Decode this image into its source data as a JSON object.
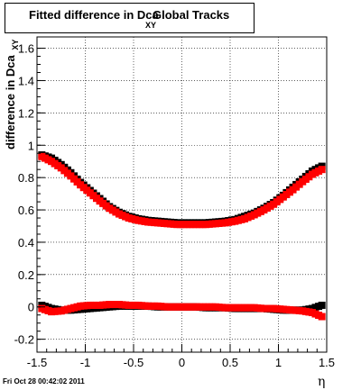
{
  "title": {
    "main": "Fitted difference in Dca",
    "subscript": "XY",
    "tail": "Global Tracks"
  },
  "timestamp": "Fri Oct 28 00:42:02 2011",
  "chart_data": {
    "type": "scatter",
    "xlabel": "η",
    "ylabel": "difference in Dca",
    "ylabel_subscript": "XY",
    "xlim": [
      -1.5,
      1.5
    ],
    "ylim": [
      -0.28,
      1.67
    ],
    "grid": true,
    "x_ticks": [
      "-1.5",
      "-1",
      "-0.5",
      "0",
      "0.5",
      "1",
      "1.5"
    ],
    "y_ticks": [
      "-0.2",
      "0",
      "0.2",
      "0.4",
      "0.6",
      "0.8",
      "1",
      "1.2",
      "1.4",
      "1.6"
    ],
    "series": [
      {
        "color": "#000000",
        "marker": "square",
        "x": [
          -1.45,
          -1.35,
          -1.25,
          -1.15,
          -1.05,
          -0.95,
          -0.85,
          -0.75,
          -0.65,
          -0.55,
          -0.45,
          -0.35,
          -0.25,
          -0.15,
          -0.05,
          0.05,
          0.15,
          0.25,
          0.35,
          0.45,
          0.55,
          0.65,
          0.75,
          0.85,
          0.95,
          1.05,
          1.15,
          1.25,
          1.35,
          1.45
        ],
        "y": [
          0.94,
          0.92,
          0.88,
          0.83,
          0.77,
          0.72,
          0.67,
          0.62,
          0.585,
          0.56,
          0.545,
          0.535,
          0.53,
          0.525,
          0.52,
          0.52,
          0.52,
          0.52,
          0.525,
          0.53,
          0.54,
          0.56,
          0.58,
          0.61,
          0.645,
          0.69,
          0.74,
          0.79,
          0.84,
          0.87
        ]
      },
      {
        "color": "#ff0000",
        "marker": "square",
        "x": [
          -1.45,
          -1.35,
          -1.25,
          -1.15,
          -1.05,
          -0.95,
          -0.85,
          -0.75,
          -0.65,
          -0.55,
          -0.45,
          -0.35,
          -0.25,
          -0.15,
          -0.05,
          0.05,
          0.15,
          0.25,
          0.35,
          0.45,
          0.55,
          0.65,
          0.75,
          0.85,
          0.95,
          1.05,
          1.15,
          1.25,
          1.35,
          1.45
        ],
        "y": [
          0.93,
          0.9,
          0.86,
          0.81,
          0.755,
          0.705,
          0.655,
          0.61,
          0.575,
          0.55,
          0.535,
          0.525,
          0.52,
          0.515,
          0.51,
          0.51,
          0.51,
          0.51,
          0.515,
          0.52,
          0.53,
          0.545,
          0.57,
          0.6,
          0.635,
          0.68,
          0.725,
          0.775,
          0.82,
          0.85
        ]
      },
      {
        "color": "#000000",
        "marker": "square",
        "x": [
          -1.45,
          -1.35,
          -1.25,
          -1.15,
          -1.05,
          -0.95,
          -0.85,
          -0.75,
          -0.65,
          -0.55,
          -0.45,
          -0.35,
          -0.25,
          -0.15,
          -0.05,
          0.05,
          0.15,
          0.25,
          0.35,
          0.45,
          0.55,
          0.65,
          0.75,
          0.85,
          0.95,
          1.05,
          1.15,
          1.25,
          1.35,
          1.45
        ],
        "y": [
          0.01,
          -0.01,
          -0.02,
          -0.02,
          -0.015,
          -0.01,
          -0.005,
          0.0,
          0.005,
          0.005,
          0.005,
          0.005,
          0.0,
          0.0,
          0.0,
          0.0,
          0.0,
          -0.005,
          -0.005,
          -0.005,
          -0.01,
          -0.01,
          -0.01,
          -0.01,
          -0.015,
          -0.02,
          -0.02,
          -0.02,
          -0.01,
          0.01
        ]
      },
      {
        "color": "#ff0000",
        "marker": "square",
        "x": [
          -1.45,
          -1.35,
          -1.25,
          -1.15,
          -1.05,
          -0.95,
          -0.85,
          -0.75,
          -0.65,
          -0.55,
          -0.45,
          -0.35,
          -0.25,
          -0.15,
          -0.05,
          0.05,
          0.15,
          0.25,
          0.35,
          0.45,
          0.55,
          0.65,
          0.75,
          0.85,
          0.95,
          1.05,
          1.15,
          1.25,
          1.35,
          1.45
        ],
        "y": [
          -0.01,
          -0.03,
          -0.025,
          -0.01,
          0.005,
          0.01,
          0.01,
          0.015,
          0.015,
          0.01,
          0.01,
          0.005,
          0.005,
          0.0,
          0.0,
          0.0,
          0.0,
          0.0,
          0.0,
          -0.005,
          -0.005,
          -0.005,
          -0.005,
          -0.01,
          -0.01,
          -0.015,
          -0.02,
          -0.025,
          -0.035,
          -0.06
        ]
      }
    ]
  }
}
